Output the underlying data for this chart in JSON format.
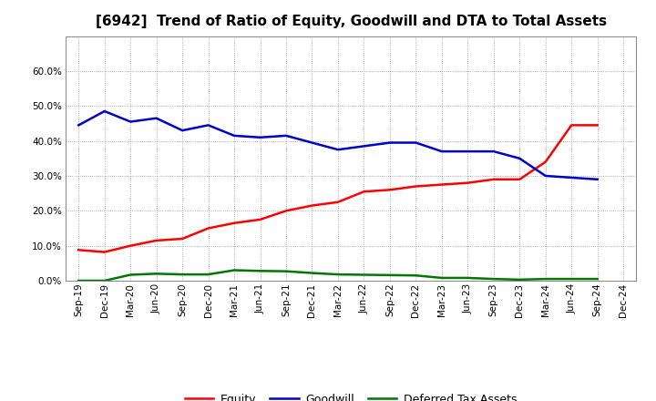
{
  "title": "[6942]  Trend of Ratio of Equity, Goodwill and DTA to Total Assets",
  "x_labels": [
    "Sep-19",
    "Dec-19",
    "Mar-20",
    "Jun-20",
    "Sep-20",
    "Dec-20",
    "Mar-21",
    "Jun-21",
    "Sep-21",
    "Dec-21",
    "Mar-22",
    "Jun-22",
    "Sep-22",
    "Dec-22",
    "Mar-23",
    "Jun-23",
    "Sep-23",
    "Dec-23",
    "Mar-24",
    "Jun-24",
    "Sep-24",
    "Dec-24"
  ],
  "equity": [
    0.088,
    0.082,
    0.1,
    0.115,
    0.12,
    0.15,
    0.165,
    0.175,
    0.2,
    0.215,
    0.225,
    0.255,
    0.26,
    0.27,
    0.275,
    0.28,
    0.29,
    0.29,
    0.34,
    0.445,
    0.445,
    null
  ],
  "goodwill": [
    0.445,
    0.485,
    0.455,
    0.465,
    0.43,
    0.445,
    0.415,
    0.41,
    0.415,
    0.395,
    0.375,
    0.385,
    0.395,
    0.395,
    0.37,
    0.37,
    0.37,
    0.35,
    0.3,
    0.295,
    0.29,
    null
  ],
  "dta": [
    0.0,
    0.0,
    0.017,
    0.02,
    0.018,
    0.018,
    0.03,
    0.028,
    0.027,
    0.022,
    0.018,
    0.017,
    0.016,
    0.015,
    0.008,
    0.008,
    0.005,
    0.003,
    0.005,
    0.005,
    0.005,
    null
  ],
  "equity_color": "#ff0000",
  "goodwill_color": "#0000cc",
  "dta_color": "#007700",
  "ylim": [
    0.0,
    0.7
  ],
  "yticks": [
    0.0,
    0.1,
    0.2,
    0.3,
    0.4,
    0.5,
    0.6
  ],
  "legend_labels": [
    "Equity",
    "Goodwill",
    "Deferred Tax Assets"
  ],
  "background_color": "#ffffff",
  "grid_color": "#999999",
  "title_fontsize": 11,
  "tick_fontsize": 7.5,
  "legend_fontsize": 9,
  "linewidth": 1.8
}
